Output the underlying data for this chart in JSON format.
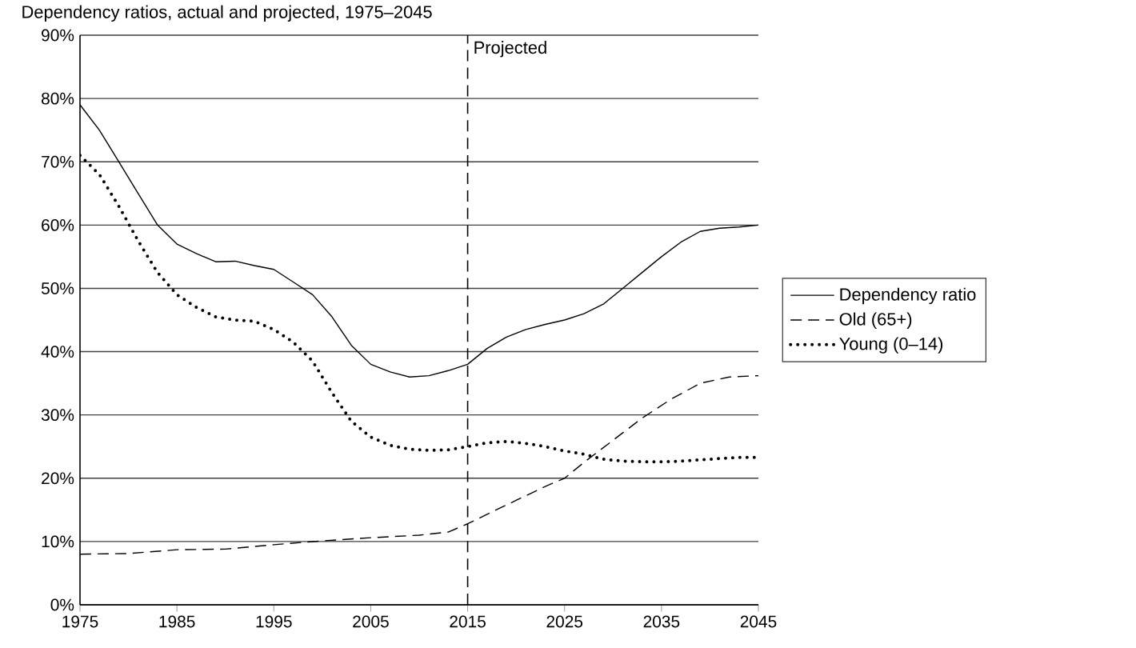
{
  "chart_data": {
    "type": "line",
    "title": "Dependency ratios, actual and projected, 1975–2045",
    "xlim": [
      1975,
      2045
    ],
    "xticks": [
      1975,
      1985,
      1995,
      2005,
      2015,
      2025,
      2035,
      2045
    ],
    "ylim": [
      0,
      90
    ],
    "yticks": [
      {
        "value": 0,
        "label": "0%"
      },
      {
        "value": 10,
        "label": "10%"
      },
      {
        "value": 20,
        "label": "20%"
      },
      {
        "value": 30,
        "label": "30%"
      },
      {
        "value": 40,
        "label": "40%"
      },
      {
        "value": 50,
        "label": "50%"
      },
      {
        "value": 60,
        "label": "60%"
      },
      {
        "value": 70,
        "label": "70%"
      },
      {
        "value": 80,
        "label": "80%"
      },
      {
        "value": 90,
        "label": "90%"
      }
    ],
    "grid": "y",
    "legend": "right",
    "ref_lines": [
      {
        "axis": "x",
        "value": 2015,
        "label": "Projected",
        "color": "#000000",
        "line_style": "dashed"
      }
    ],
    "series": [
      {
        "name": "Dependency ratio",
        "color": "#000000",
        "line_style": "solid",
        "x": [
          1975,
          1977,
          1979,
          1981,
          1983,
          1985,
          1987,
          1989,
          1991,
          1993,
          1995,
          1997,
          1999,
          2001,
          2003,
          2005,
          2007,
          2009,
          2011,
          2013,
          2015,
          2017,
          2019,
          2021,
          2023,
          2025,
          2027,
          2029,
          2031,
          2033,
          2035,
          2037,
          2039,
          2041,
          2043,
          2045
        ],
        "values": [
          79,
          75,
          70,
          65,
          60,
          57,
          55.5,
          54.2,
          54.3,
          53.6,
          53,
          51,
          49,
          45.5,
          41,
          38,
          36.8,
          36,
          36.2,
          37,
          38,
          40.5,
          42.3,
          43.5,
          44.3,
          45,
          46,
          47.5,
          50,
          52.5,
          55,
          57.3,
          59,
          59.5,
          59.7,
          60
        ]
      },
      {
        "name": "Old (65+)",
        "color": "#000000",
        "line_style": "dashed",
        "x": [
          1975,
          1980,
          1985,
          1990,
          1995,
          2000,
          2005,
          2010,
          2013,
          2015,
          2017,
          2020,
          2023,
          2025,
          2027,
          2030,
          2033,
          2036,
          2039,
          2042,
          2045
        ],
        "values": [
          8,
          8.1,
          8.7,
          8.8,
          9.5,
          10.1,
          10.6,
          11,
          11.5,
          12.8,
          14.3,
          16.5,
          18.7,
          20,
          22.5,
          26,
          29.5,
          32.5,
          35,
          36,
          36.2
        ]
      },
      {
        "name": "Young (0–14)",
        "color": "#000000",
        "line_style": "dotted",
        "x": [
          1975,
          1977,
          1979,
          1981,
          1983,
          1985,
          1987,
          1989,
          1991,
          1993,
          1995,
          1997,
          1999,
          2001,
          2003,
          2005,
          2007,
          2009,
          2011,
          2013,
          2015,
          2017,
          2019,
          2021,
          2023,
          2025,
          2027,
          2029,
          2031,
          2033,
          2035,
          2037,
          2039,
          2041,
          2043,
          2045
        ],
        "values": [
          71,
          68,
          63,
          57.5,
          52.5,
          49,
          47,
          45.5,
          45,
          44.8,
          43.5,
          41.5,
          38.5,
          33.5,
          29,
          26.5,
          25.2,
          24.6,
          24.4,
          24.5,
          25,
          25.6,
          25.8,
          25.5,
          25,
          24.3,
          23.8,
          23,
          22.7,
          22.6,
          22.6,
          22.7,
          22.9,
          23.1,
          23.3,
          23.3
        ]
      }
    ]
  }
}
